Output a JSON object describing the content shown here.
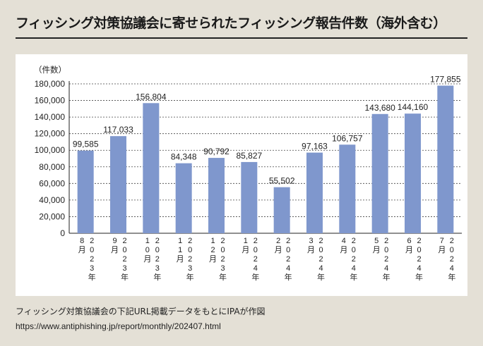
{
  "title": "フィッシング対策協議会に寄せられたフィッシング報告件数（海外含む）",
  "source_line": "フィッシング対策協議会の下記URL掲載データをもとにIPAが作図",
  "url_line": "https://www.antiphishing.jp/report/monthly/202407.html",
  "chart_data": {
    "type": "bar",
    "ylabel": "（件数）",
    "ylim": [
      0,
      180000
    ],
    "yticks": [
      "0",
      "20,000",
      "40,000",
      "60,000",
      "80,000",
      "100,000",
      "120,000",
      "140,000",
      "160,000",
      "180,000"
    ],
    "grid": true,
    "bar_color": "#7f97cd",
    "categories": [
      {
        "month": "8月",
        "year": "2023年"
      },
      {
        "month": "9月",
        "year": "2023年"
      },
      {
        "month": "10月",
        "year": "2023年"
      },
      {
        "month": "11月",
        "year": "2023年"
      },
      {
        "month": "12月",
        "year": "2023年"
      },
      {
        "month": "1月",
        "year": "2024年"
      },
      {
        "month": "2月",
        "year": "2024年"
      },
      {
        "month": "3月",
        "year": "2024年"
      },
      {
        "month": "4月",
        "year": "2024年"
      },
      {
        "month": "5月",
        "year": "2024年"
      },
      {
        "month": "6月",
        "year": "2024年"
      },
      {
        "month": "7月",
        "year": "2024年"
      }
    ],
    "values": [
      99585,
      117033,
      156804,
      84348,
      90792,
      85827,
      55502,
      97163,
      106757,
      143680,
      144160,
      177855
    ],
    "value_labels": [
      "99,585",
      "117,033",
      "156,804",
      "84,348",
      "90,792",
      "85,827",
      "55,502",
      "97,163",
      "106,757",
      "143,680",
      "144,160",
      "177,855"
    ]
  }
}
